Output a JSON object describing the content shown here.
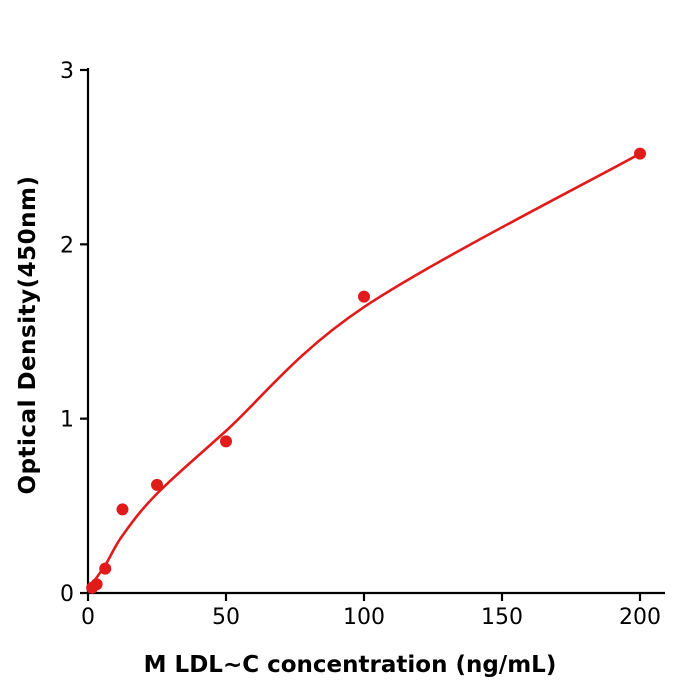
{
  "chart_data": {
    "type": "scatter",
    "title": "",
    "xlabel": "M  LDL~C concentration (ng/mL)",
    "ylabel": "Optical Density(450nm)",
    "xlim": [
      0,
      210
    ],
    "ylim": [
      0,
      3
    ],
    "xticks": [
      0,
      50,
      100,
      150,
      200
    ],
    "yticks": [
      0,
      1,
      2,
      3
    ],
    "grid": false,
    "legend": "none",
    "point_color": "#e11a1a",
    "line_color": "#e11a1a",
    "axis_color": "#000000",
    "points": {
      "x": [
        1.5,
        3.125,
        6.25,
        12.5,
        25,
        50,
        100,
        200
      ],
      "y": [
        0.03,
        0.05,
        0.14,
        0.48,
        0.62,
        0.87,
        1.7,
        2.52
      ]
    },
    "fit_curve": {
      "x": [
        0,
        6.25,
        12.5,
        25,
        50,
        100,
        200
      ],
      "y": [
        0.02,
        0.16,
        0.33,
        0.57,
        0.93,
        1.64,
        2.52
      ]
    }
  }
}
